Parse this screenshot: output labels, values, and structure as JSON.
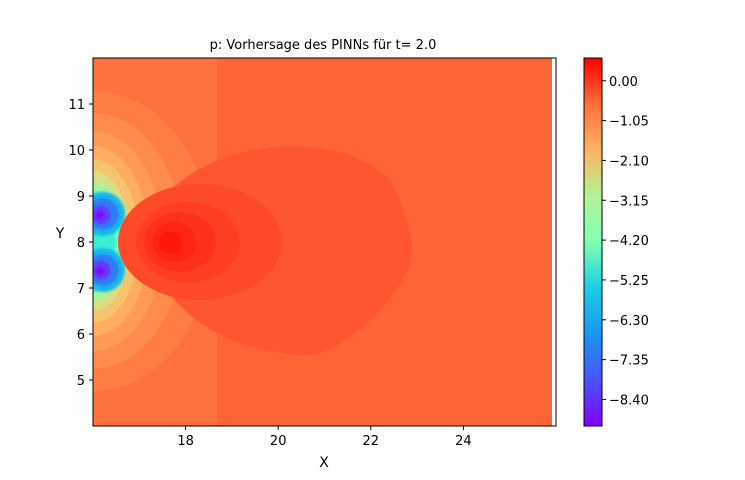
{
  "chart_data": {
    "type": "heatmap",
    "title": "p: Vorhersage des PINNs für t= 2.0",
    "xlabel": "X",
    "ylabel": "Y",
    "xlim": [
      16.0,
      26.0
    ],
    "ylim": [
      4.0,
      12.0
    ],
    "x_ticks": [
      "18",
      "20",
      "22",
      "24"
    ],
    "x_tick_values": [
      18,
      20,
      22,
      24
    ],
    "y_ticks": [
      "5",
      "6",
      "7",
      "8",
      "9",
      "10",
      "11"
    ],
    "y_tick_values": [
      5,
      6,
      7,
      8,
      9,
      10,
      11
    ],
    "colorbar": {
      "colormap": "rainbow",
      "range": [
        -9.1,
        0.6
      ],
      "ticks": [
        "0.00",
        "−1.05",
        "−2.10",
        "−3.15",
        "−4.20",
        "−5.25",
        "−6.30",
        "−7.35",
        "−8.40"
      ],
      "tick_values": [
        0.0,
        -1.05,
        -2.1,
        -3.15,
        -4.2,
        -5.25,
        -6.3,
        -7.35,
        -8.4
      ]
    },
    "features": [
      {
        "name": "low-pressure lobe upper",
        "x": 16.2,
        "y": 8.55,
        "value": -9.0
      },
      {
        "name": "low-pressure lobe lower",
        "x": 16.2,
        "y": 7.4,
        "value": -9.0
      },
      {
        "name": "stagnation high",
        "x": 17.7,
        "y": 7.95,
        "value": 0.5
      },
      {
        "name": "background",
        "value": -0.55
      }
    ],
    "grid": false,
    "legend": "none"
  }
}
